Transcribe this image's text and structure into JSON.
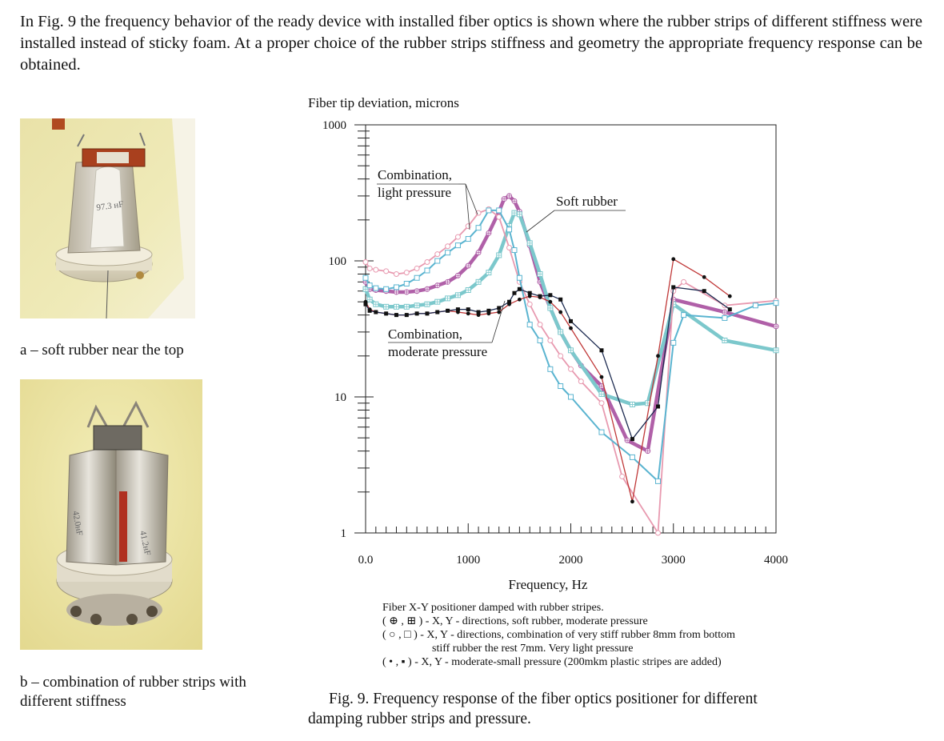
{
  "intro_paragraph": "In Fig. 9 the frequency behavior of the ready device with installed fiber optics is shown where the rubber strips of different stiffness were installed instead of sticky foam. At a proper choice of the rubber strips stiffness and geometry the appropriate frequency response can be obtained.",
  "photos": {
    "a": {
      "caption": "a – soft rubber near the top",
      "label": "97.3 нF"
    },
    "b": {
      "caption": "b – combination of rubber strips with different stiffness",
      "label_left": "42.0нF",
      "label_right": "41.2нF"
    }
  },
  "figure": {
    "caption_line1": "Fig. 9. Frequency response of the fiber optics positioner for different",
    "caption_line2": "damping rubber strips and pressure.",
    "legend": {
      "title": "Fiber X-Y positioner damped with rubber stripes.",
      "line1": "( ⊕ , ⊞ ) - X, Y - directions, soft rubber, moderate pressure",
      "line2": "( ○ , □ ) - X, Y - directions, combination of very stiff rubber 8mm from bottom",
      "line3": "stiff rubber the rest 7mm. Very light pressure",
      "line4": "( • , ▪ ) - X, Y - moderate-small pressure (200mkm plastic stripes are added)"
    },
    "colors": {
      "soft_rubber": "#b060a8",
      "soft_rubber_y": "#7cc8cc",
      "combination_light": "#e89ab0",
      "combination_light_y": "#5ab4d0",
      "moderate_x": "#c03838",
      "moderate_y": "#1c2a50"
    }
  },
  "chart_data": {
    "type": "line",
    "title": "",
    "ylabel": "Fiber tip deviation, microns",
    "xlabel": "Frequency, Hz",
    "xlim": [
      0,
      4000
    ],
    "ylim": [
      1,
      1000
    ],
    "yscale": "log",
    "x_tick_labels": [
      "0.0",
      "1000",
      "2000",
      "3000",
      "4000"
    ],
    "y_tick_labels": [
      "1",
      "10",
      "100",
      "1000"
    ],
    "annotations": {
      "combination_light": "Combination,\nlight pressure",
      "combination_light_l1": "Combination,",
      "combination_light_l2": "light pressure",
      "combination_moderate_l1": "Combination,",
      "combination_moderate_l2": "moderate pressure",
      "soft_rubber": "Soft rubber"
    },
    "series": [
      {
        "marker": "circle-plus",
        "color": "#b060a8",
        "x": [
          0,
          40,
          100,
          200,
          300,
          400,
          500,
          600,
          700,
          800,
          900,
          1000,
          1100,
          1200,
          1300,
          1350,
          1400,
          1450,
          1500,
          1600,
          1700,
          1800,
          1900,
          2000,
          2100,
          2300,
          2550,
          2750,
          3000,
          3500,
          4000
        ],
        "y": [
          70,
          62,
          61,
          60,
          59,
          59,
          60,
          62,
          66,
          70,
          78,
          92,
          115,
          160,
          230,
          285,
          300,
          275,
          230,
          130,
          70,
          45,
          30,
          22,
          17,
          12,
          4.8,
          4,
          52,
          42,
          33
        ]
      },
      {
        "marker": "square-plus",
        "color": "#7cc8cc",
        "x": [
          0,
          40,
          100,
          200,
          300,
          400,
          500,
          600,
          700,
          800,
          900,
          1000,
          1100,
          1200,
          1300,
          1400,
          1450,
          1500,
          1600,
          1700,
          1800,
          1900,
          2000,
          2300,
          2600,
          2750,
          3000,
          3500,
          4000
        ],
        "y": [
          62,
          52,
          48,
          46,
          46,
          46,
          47,
          48,
          50,
          53,
          56,
          61,
          70,
          82,
          110,
          180,
          225,
          220,
          135,
          80,
          45,
          30,
          22,
          10.5,
          8.8,
          9,
          48,
          26,
          22
        ]
      },
      {
        "marker": "circle",
        "color": "#e89ab0",
        "x": [
          0,
          40,
          100,
          200,
          300,
          400,
          500,
          600,
          700,
          800,
          900,
          1000,
          1100,
          1200,
          1300,
          1400,
          1500,
          1600,
          1700,
          1800,
          1900,
          2000,
          2100,
          2300,
          2500,
          2850,
          3000,
          3100,
          3500,
          4000
        ],
        "y": [
          98,
          88,
          86,
          84,
          80,
          82,
          88,
          98,
          112,
          128,
          150,
          180,
          225,
          240,
          210,
          125,
          70,
          48,
          34,
          26,
          20,
          16,
          13,
          9,
          2.6,
          1,
          60,
          70,
          47,
          51
        ]
      },
      {
        "marker": "square",
        "color": "#5ab4d0",
        "x": [
          0,
          40,
          100,
          200,
          300,
          400,
          500,
          600,
          700,
          800,
          900,
          1000,
          1100,
          1200,
          1300,
          1400,
          1450,
          1500,
          1600,
          1700,
          1800,
          1900,
          2000,
          2300,
          2600,
          2850,
          3000,
          3100,
          3500,
          3800,
          4000
        ],
        "y": [
          75,
          66,
          63,
          62,
          64,
          68,
          75,
          85,
          100,
          115,
          130,
          145,
          175,
          235,
          235,
          170,
          120,
          75,
          34,
          26,
          16,
          12,
          10,
          5.5,
          3.6,
          2.4,
          25,
          40,
          38,
          47,
          49
        ]
      },
      {
        "marker": "dot",
        "color": "#c03838",
        "x": [
          0,
          40,
          100,
          200,
          300,
          400,
          500,
          600,
          700,
          800,
          900,
          1000,
          1100,
          1200,
          1300,
          1400,
          1500,
          1600,
          1700,
          1800,
          1900,
          2000,
          2300,
          2600,
          2850,
          3000,
          3300,
          3550
        ],
        "y": [
          50,
          44,
          42,
          41,
          40,
          40,
          41,
          41,
          42,
          43,
          42,
          41,
          40,
          41,
          42,
          48,
          52,
          55,
          54,
          50,
          42,
          32,
          14,
          1.7,
          20,
          103,
          76,
          55
        ]
      },
      {
        "marker": "square-filled",
        "color": "#1c2a50",
        "x": [
          0,
          40,
          100,
          200,
          300,
          400,
          500,
          600,
          700,
          800,
          900,
          1000,
          1100,
          1200,
          1300,
          1400,
          1450,
          1500,
          1600,
          1700,
          1800,
          1900,
          2000,
          2300,
          2600,
          2850,
          3000,
          3300,
          3550
        ],
        "y": [
          48,
          43,
          42,
          41,
          40,
          40,
          41,
          41,
          42,
          43,
          44,
          44,
          42,
          43,
          45,
          50,
          58,
          62,
          58,
          55,
          56,
          52,
          36,
          22,
          4.9,
          8.5,
          64,
          60,
          44
        ]
      }
    ]
  }
}
